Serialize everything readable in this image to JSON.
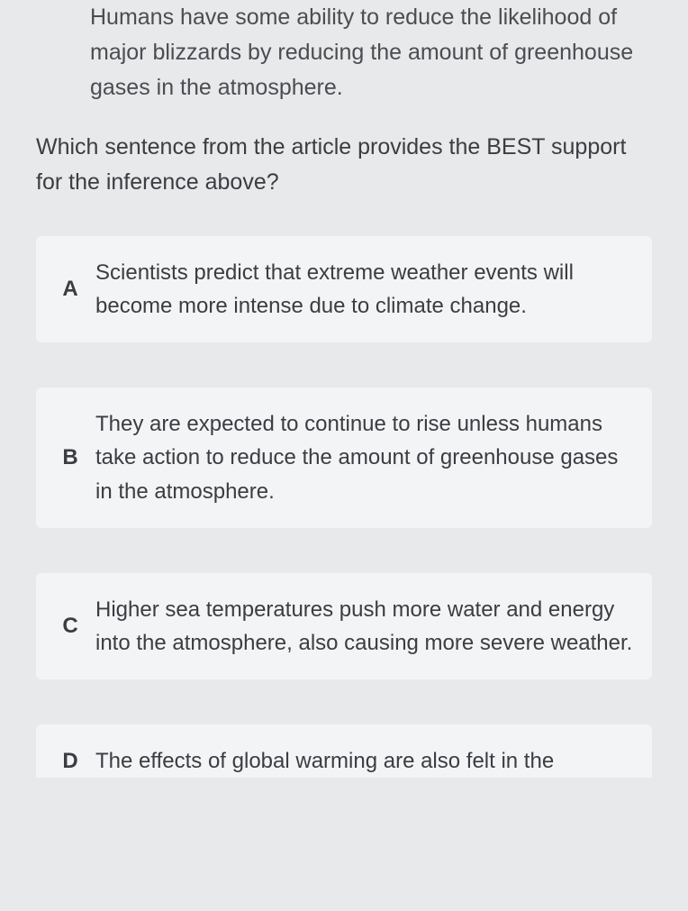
{
  "inference": "Humans have some ability to reduce the likelihood of major blizzards by reducing the amount of greenhouse gases in the atmosphere.",
  "question": "Which sentence from the article provides the BEST support for the inference above?",
  "options": [
    {
      "letter": "A",
      "text": "Scientists predict that extreme weather events will become more intense due to climate change."
    },
    {
      "letter": "B",
      "text": "They are expected to continue to rise unless humans take action to reduce the amount of greenhouse gases in the atmosphere."
    },
    {
      "letter": "C",
      "text": "Higher sea temperatures push more water and energy into the atmosphere, also causing more severe weather."
    },
    {
      "letter": "D",
      "text": "The effects of global warming are also felt in the"
    }
  ],
  "styling": {
    "background_color": "#e8e9ea",
    "option_background": "#f3f4f5",
    "text_color": "#3a3d42",
    "inference_color": "#4a4d52",
    "body_fontsize": 25,
    "option_fontsize": 24,
    "letter_fontweight": 700,
    "line_height": 1.55,
    "option_gap": 50,
    "container_width": 764,
    "container_height": 1011
  }
}
